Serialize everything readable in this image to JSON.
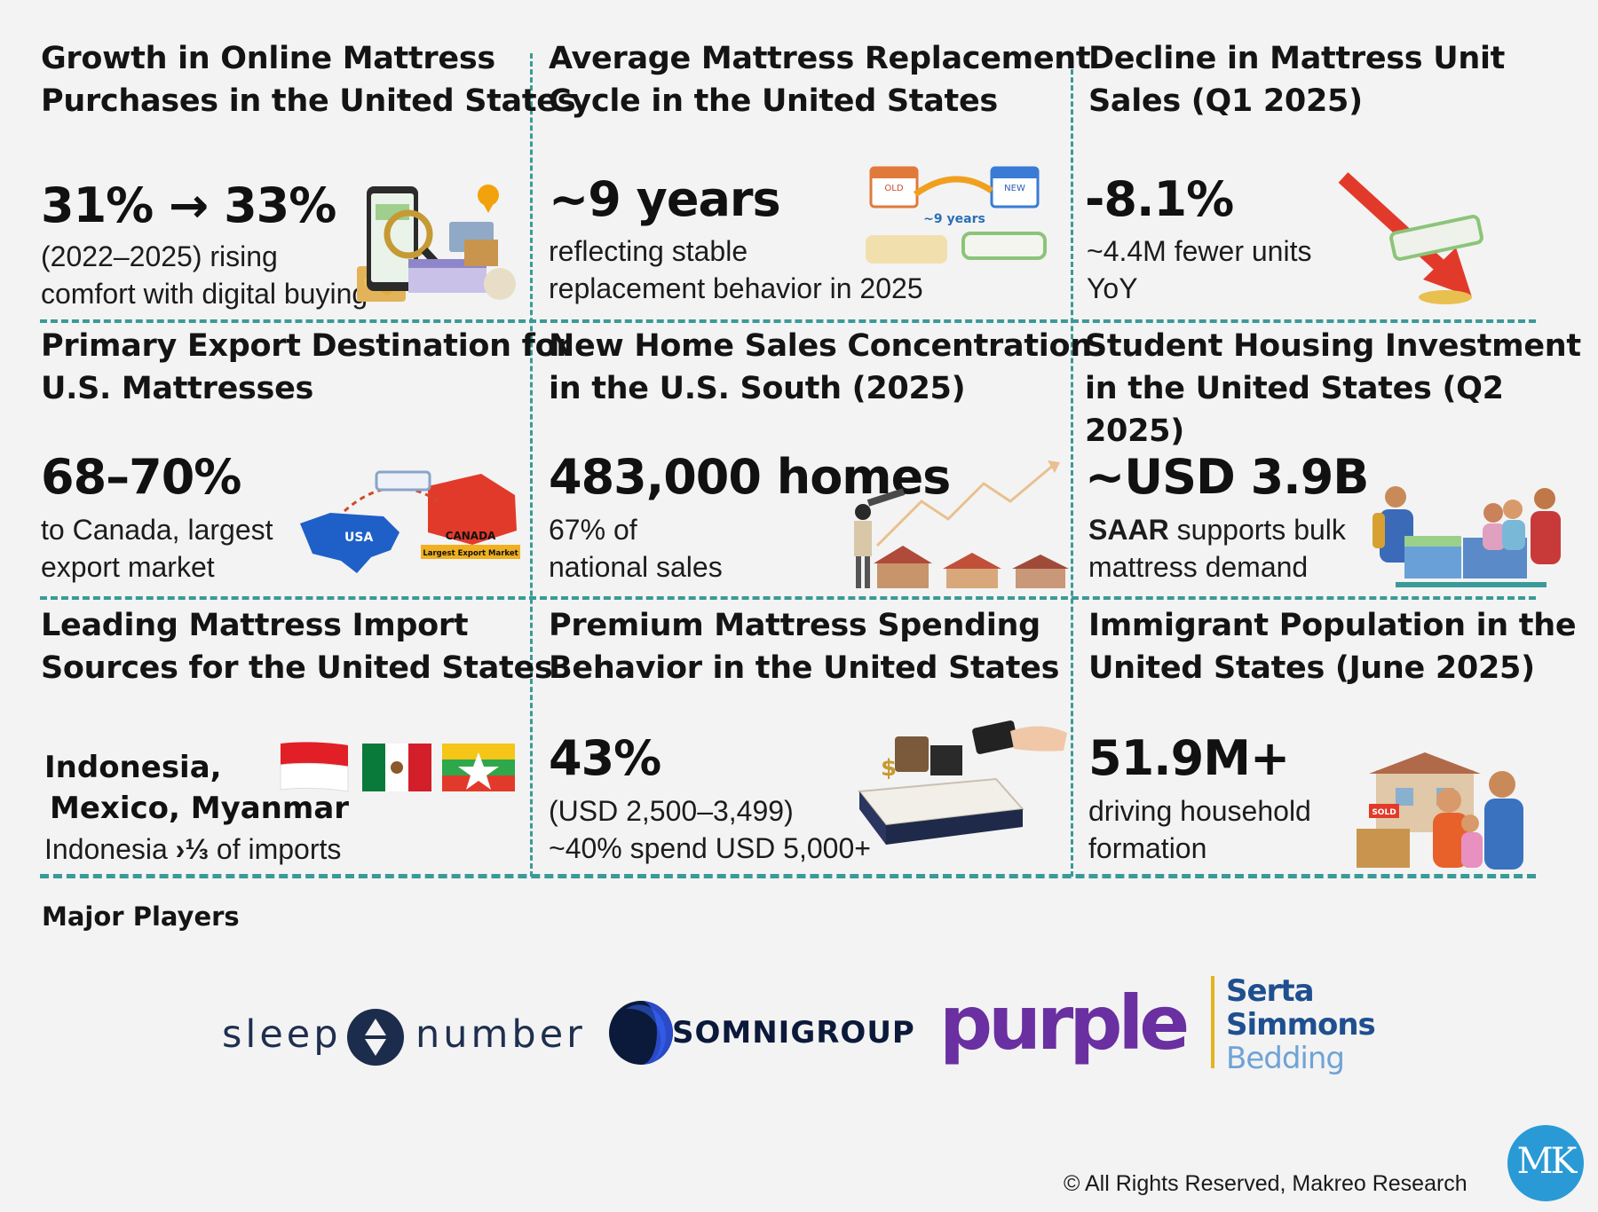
{
  "cards": [
    {
      "title_l1": "Growth in Online Mattress",
      "title_l2": "Purchases in the United States",
      "value": "31% → 33%",
      "sub_l1": "(2022–2025) rising",
      "sub_l2": "comfort with digital buying",
      "icon": "online-shopping-icon"
    },
    {
      "title_l1": "Average Mattress Replacement",
      "title_l2": "Cycle in the United States",
      "value": "~9 years",
      "sub_l1": "reflecting stable",
      "sub_l2": "replacement behavior in 2025",
      "icon": "replacement-cycle-icon",
      "illus": {
        "old": "OLD",
        "new": "NEW",
        "years": "~9 years"
      }
    },
    {
      "title_l1": "Decline in Mattress Unit",
      "title_l2": "Sales (Q1 2025)",
      "value": "-8.1%",
      "sub_l1": "~4.4M fewer units",
      "sub_l2": "YoY",
      "icon": "declining-arrow-icon"
    },
    {
      "title_l1": "Primary Export Destination for",
      "title_l2": "U.S. Mattresses",
      "value": "68–70%",
      "sub_l1": "to Canada, largest",
      "sub_l2": "export market",
      "icon": "export-map-icon",
      "illus": {
        "usa": "USA",
        "canada": "CANADA",
        "tag": "Largest Export Market"
      }
    },
    {
      "title_l1": "New Home Sales Concentration",
      "title_l2": "in the U.S. South (2025)",
      "value": "483,000 homes",
      "sub_l1": "67% of",
      "sub_l2": "national sales",
      "icon": "home-growth-icon"
    },
    {
      "title_l1": "Student Housing Investment",
      "title_l2": "in the United States (Q2 2025)",
      "value": "~USD 3.9B",
      "sub_l1_bold": "SAAR",
      "sub_l1": " supports bulk",
      "sub_l2": "mattress demand",
      "icon": "students-icon"
    },
    {
      "title_l1": "Leading Mattress Import",
      "title_l2": "Sources for the United States",
      "value_l1": "Indonesia,",
      "value_l2": "Mexico, Myanmar",
      "sub_l1": "Indonesia ",
      "sub_l1_bold": "›⅓",
      "sub_l1_tail": " of imports",
      "icon": "flags-icon"
    },
    {
      "title_l1": "Premium Mattress Spending",
      "title_l2": "Behavior in the United States",
      "value": "43%",
      "sub_l1": "(USD 2,500–3,499)",
      "sub_l2": "~40% spend USD 5,000+",
      "icon": "premium-mattress-icon"
    },
    {
      "title_l1": "Immigrant Population in the",
      "title_l2": "United States (June 2025)",
      "value": "51.9M+",
      "sub_l1": "driving household",
      "sub_l2": "formation",
      "icon": "family-home-icon",
      "illus": {
        "sold": "SOLD"
      }
    }
  ],
  "players": {
    "heading": "Major Players",
    "sleep_number": {
      "left": "sleep",
      "right": "number"
    },
    "somnigroup": "SOMNIGROUP",
    "purple": "purple",
    "serta": {
      "l1": "Serta",
      "l2": "Simmons",
      "l3": "Bedding"
    }
  },
  "footer": {
    "copyright": "© All Rights Reserved, Makreo Research",
    "logo": "MK"
  },
  "colors": {
    "divider": "#3a9a98",
    "purple": "#6a2fa0",
    "serta_navy": "#1f4f8f",
    "serta_light": "#6fa3d6",
    "serta_bar": "#e6b321",
    "mk_blue": "#2a9ad6"
  }
}
